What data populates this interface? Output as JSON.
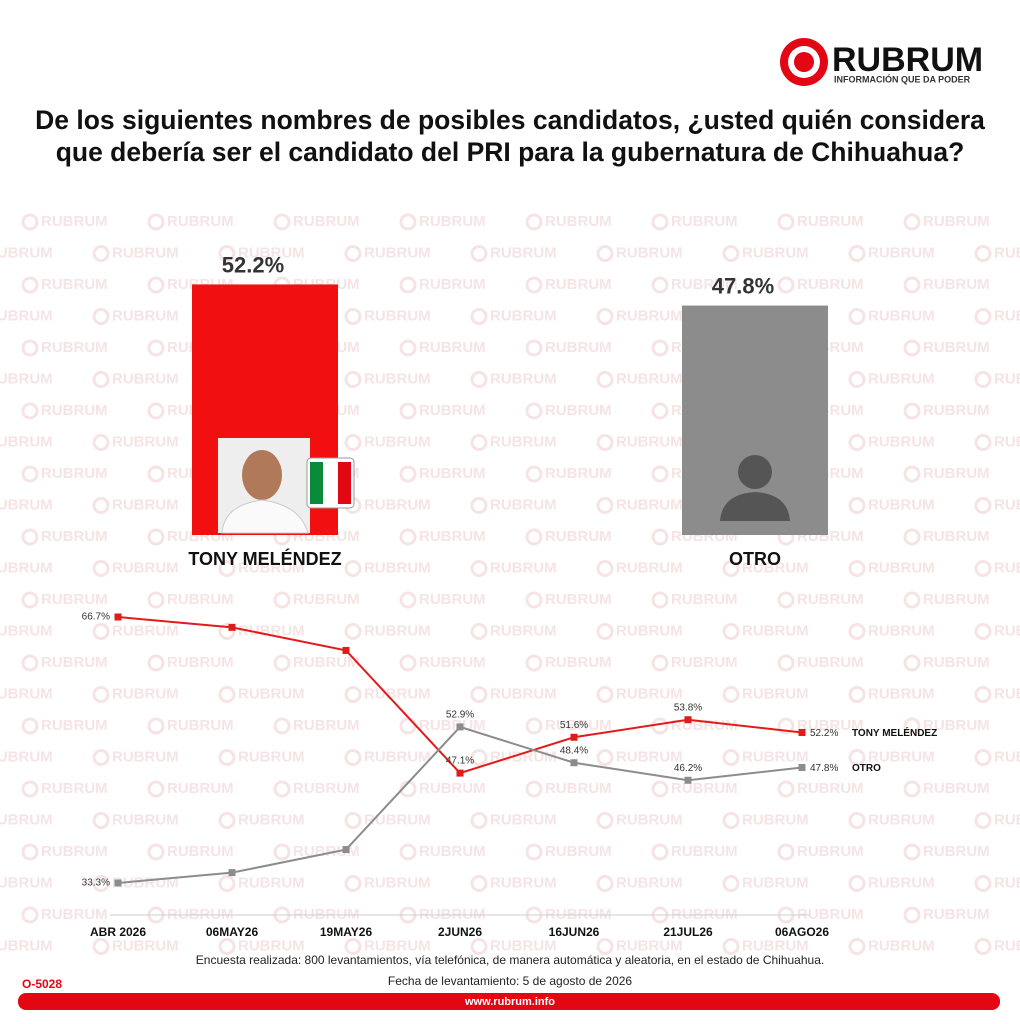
{
  "brand": "RUBRUM",
  "tagline": "INFORMACIÓN QUE DA PODER",
  "watermark": "RUBRUM",
  "title": "De los siguientes nombres de posibles candidatos, ¿usted quién considera que debería ser el candidato del PRI para la gubernatura de Chihuahua?",
  "chart_data": [
    {
      "type": "bar",
      "categories": [
        "TONY MELÉNDEZ",
        "OTRO"
      ],
      "values": [
        52.2,
        47.8
      ],
      "value_labels": [
        "52.2%",
        "47.8%"
      ],
      "colors": [
        "#f20f0f",
        "#8c8c8c"
      ]
    },
    {
      "type": "line",
      "categories": [
        "ABR 2026",
        "06MAY26",
        "19MAY26",
        "2JUN26",
        "16JUN26",
        "21JUL26",
        "06AGO26"
      ],
      "series": [
        {
          "name": "TONY MELÉNDEZ",
          "color": "#e31a1a",
          "values": [
            66.7,
            65.4,
            62.5,
            47.1,
            51.6,
            53.8,
            52.2
          ],
          "value_labels": [
            "66.7%",
            null,
            null,
            "47.1%",
            "51.6%",
            "53.8%",
            "52.2%"
          ]
        },
        {
          "name": "OTRO",
          "color": "#8c8c8c",
          "values": [
            33.3,
            34.6,
            37.5,
            52.9,
            48.4,
            46.2,
            47.8
          ],
          "value_labels": [
            "33.3%",
            null,
            null,
            "52.9%",
            "48.4%",
            "46.2%",
            "47.8%"
          ]
        }
      ]
    }
  ],
  "footer": {
    "note": "Encuesta realizada: 800 levantamientos, vía telefónica, de manera automática y aleatoria, en el estado de Chihuahua.",
    "date": "Fecha de levantamiento: 5 de agosto de 2026",
    "code": "O-5028",
    "url": "www.rubrum.info"
  }
}
